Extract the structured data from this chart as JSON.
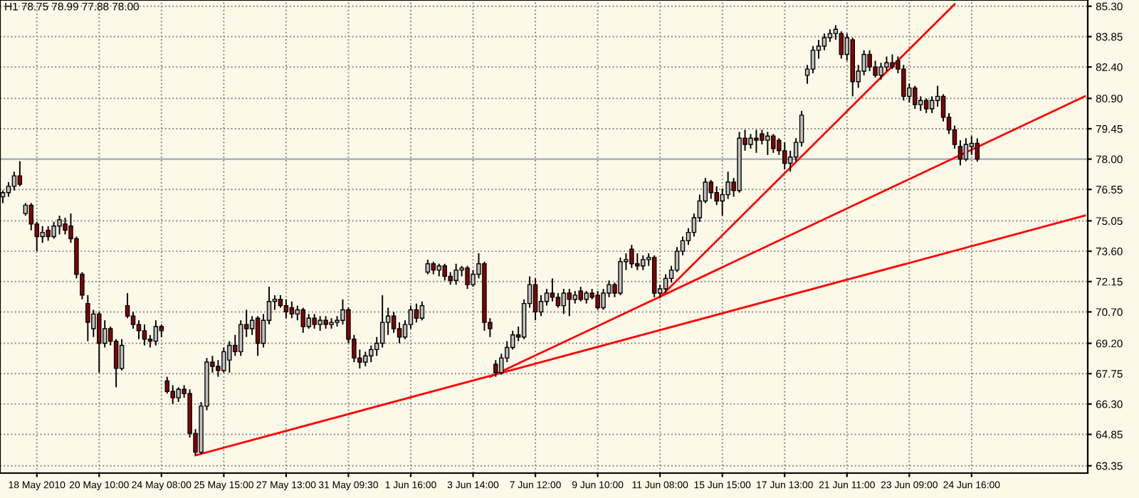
{
  "chart_data": {
    "type": "candlestick",
    "title": "H1 78.75 78.99 77.88 78.00",
    "categories": [
      null,
      null,
      null,
      null,
      null,
      null,
      "18 May 2010",
      null,
      null,
      null,
      null,
      null,
      null,
      null,
      null,
      null,
      null,
      "20 May 10:00",
      null,
      null,
      null,
      null,
      null,
      null,
      null,
      null,
      null,
      null,
      "24 May 08:00",
      null,
      null,
      null,
      null,
      null,
      null,
      null,
      null,
      null,
      null,
      "25 May 15:00",
      null,
      null,
      null,
      null,
      null,
      null,
      null,
      null,
      null,
      null,
      "27 May 13:00",
      null,
      null,
      null,
      null,
      null,
      null,
      null,
      null,
      null,
      null,
      "31 May 09:30",
      null,
      null,
      null,
      null,
      null,
      null,
      null,
      null,
      null,
      null,
      "1 Jun 16:00",
      null,
      null,
      null,
      null,
      null,
      null,
      null,
      null,
      null,
      null,
      "3 Jun 14:00",
      null,
      null,
      null,
      null,
      null,
      null,
      null,
      null,
      null,
      null,
      "7 Jun 12:00",
      null,
      null,
      null,
      null,
      null,
      null,
      null,
      null,
      null,
      null,
      "9 Jun 10:00",
      null,
      null,
      null,
      null,
      null,
      null,
      null,
      null,
      null,
      null,
      "11 Jun 08:00",
      null,
      null,
      null,
      null,
      null,
      null,
      null,
      null,
      null,
      null,
      "15 Jun 15:00",
      null,
      null,
      null,
      null,
      null,
      null,
      null,
      null,
      null,
      null,
      "17 Jun 13:00",
      null,
      null,
      null,
      null,
      null,
      null,
      null,
      null,
      null,
      null,
      "21 Jun 11:00",
      null,
      null,
      null,
      null,
      null,
      null,
      null,
      null,
      null,
      null,
      "23 Jun 09:00",
      null,
      null,
      null,
      null,
      null,
      null,
      null,
      null,
      null,
      null,
      "24 Jun 16:00",
      null,
      null,
      null,
      null,
      null,
      null,
      null,
      null,
      null,
      null,
      null,
      null,
      null,
      null,
      null,
      null,
      null,
      null,
      null,
      null
    ],
    "ohlc": [
      [
        76.2,
        76.5,
        75.9,
        76.4
      ],
      [
        76.4,
        76.9,
        76.2,
        76.7
      ],
      [
        76.7,
        77.4,
        76.5,
        77.2
      ],
      [
        77.2,
        77.9,
        76.7,
        76.8
      ],
      [
        75.4,
        75.9,
        75.3,
        75.8
      ],
      [
        75.8,
        75.9,
        74.6,
        74.9
      ],
      [
        74.9,
        75.0,
        73.6,
        74.3
      ],
      [
        74.3,
        74.8,
        74.0,
        74.5
      ],
      [
        74.6,
        74.8,
        74.1,
        74.3
      ],
      [
        74.3,
        75.0,
        74.2,
        74.8
      ],
      [
        74.8,
        75.3,
        74.4,
        75.1
      ],
      [
        74.9,
        75.2,
        74.4,
        74.6
      ],
      [
        74.8,
        75.4,
        74.0,
        74.2
      ],
      [
        74.2,
        74.3,
        72.3,
        72.5
      ],
      [
        72.5,
        72.6,
        71.3,
        71.5
      ],
      [
        71.1,
        71.5,
        69.3,
        70.2
      ],
      [
        69.9,
        70.8,
        69.5,
        70.6
      ],
      [
        70.6,
        70.7,
        67.8,
        69.2
      ],
      [
        69.2,
        70.3,
        69.0,
        69.9
      ],
      [
        69.9,
        70.0,
        69.1,
        69.3
      ],
      [
        69.3,
        69.4,
        67.1,
        68.0
      ],
      [
        68.0,
        69.4,
        67.9,
        69.1
      ],
      [
        71.0,
        71.6,
        70.4,
        70.5
      ],
      [
        70.5,
        70.7,
        69.9,
        70.1
      ],
      [
        70.1,
        70.3,
        69.4,
        69.8
      ],
      [
        69.8,
        70.1,
        69.1,
        69.4
      ],
      [
        69.4,
        69.6,
        69.0,
        69.3
      ],
      [
        69.3,
        70.3,
        69.1,
        70.0
      ],
      [
        70.0,
        70.1,
        69.5,
        69.8
      ],
      [
        67.4,
        67.6,
        66.8,
        66.9
      ],
      [
        66.9,
        67.2,
        66.3,
        66.6
      ],
      [
        66.6,
        67.1,
        66.4,
        67.0
      ],
      [
        67.0,
        67.2,
        66.6,
        66.8
      ],
      [
        66.8,
        67.0,
        64.7,
        64.9
      ],
      [
        64.9,
        65.1,
        63.85,
        64.0
      ],
      [
        64.0,
        66.4,
        63.9,
        66.2
      ],
      [
        66.2,
        68.5,
        66.0,
        68.3
      ],
      [
        68.3,
        68.6,
        67.8,
        68.1
      ],
      [
        68.1,
        68.4,
        67.6,
        67.9
      ],
      [
        67.9,
        69.0,
        67.8,
        68.8
      ],
      [
        68.4,
        69.3,
        67.8,
        69.1
      ],
      [
        69.1,
        69.6,
        68.6,
        68.8
      ],
      [
        68.8,
        70.3,
        68.6,
        70.1
      ],
      [
        70.1,
        70.8,
        69.5,
        69.9
      ],
      [
        69.9,
        70.5,
        69.6,
        70.3
      ],
      [
        70.4,
        70.5,
        68.6,
        69.2
      ],
      [
        69.2,
        70.6,
        69.0,
        70.3
      ],
      [
        70.3,
        71.9,
        70.1,
        71.2
      ],
      [
        71.2,
        71.5,
        70.8,
        71.3
      ],
      [
        71.3,
        71.5,
        70.9,
        71.0
      ],
      [
        71.0,
        71.3,
        70.4,
        70.7
      ],
      [
        70.9,
        71.2,
        70.4,
        70.6
      ],
      [
        70.6,
        71.0,
        70.3,
        70.8
      ],
      [
        70.8,
        70.9,
        69.7,
        70.0
      ],
      [
        70.0,
        70.6,
        69.9,
        70.4
      ],
      [
        70.4,
        70.6,
        69.9,
        70.1
      ],
      [
        70.1,
        70.5,
        69.8,
        70.3
      ],
      [
        70.3,
        70.5,
        69.9,
        70.1
      ],
      [
        70.1,
        70.4,
        69.9,
        70.2
      ],
      [
        70.2,
        70.5,
        70.0,
        70.3
      ],
      [
        70.3,
        71.3,
        70.1,
        70.8
      ],
      [
        70.8,
        70.9,
        69.2,
        69.4
      ],
      [
        69.4,
        69.6,
        68.3,
        68.5
      ],
      [
        68.5,
        68.9,
        68.0,
        68.3
      ],
      [
        68.3,
        68.8,
        68.1,
        68.6
      ],
      [
        68.6,
        69.1,
        68.3,
        68.9
      ],
      [
        68.9,
        69.5,
        68.6,
        69.2
      ],
      [
        69.2,
        71.5,
        69.0,
        70.2
      ],
      [
        70.2,
        70.9,
        69.6,
        70.5
      ],
      [
        70.5,
        70.7,
        69.7,
        69.9
      ],
      [
        69.9,
        70.2,
        69.2,
        69.5
      ],
      [
        69.5,
        70.3,
        69.4,
        70.1
      ],
      [
        70.1,
        71.0,
        69.9,
        70.8
      ],
      [
        70.8,
        71.1,
        70.2,
        70.4
      ],
      [
        70.4,
        71.2,
        70.3,
        71.0
      ],
      [
        72.6,
        73.2,
        72.5,
        73.0
      ],
      [
        73.0,
        73.1,
        72.5,
        72.7
      ],
      [
        72.7,
        73.0,
        72.4,
        72.9
      ],
      [
        72.9,
        73.0,
        72.2,
        72.4
      ],
      [
        72.4,
        72.6,
        72.0,
        72.2
      ],
      [
        72.2,
        73.0,
        72.0,
        72.7
      ],
      [
        72.7,
        72.9,
        72.4,
        72.8
      ],
      [
        72.8,
        72.9,
        71.8,
        72.0
      ],
      [
        72.0,
        72.7,
        71.9,
        72.5
      ],
      [
        72.5,
        73.5,
        72.3,
        73.0
      ],
      [
        73.0,
        73.1,
        69.8,
        70.2
      ],
      [
        70.2,
        70.4,
        69.5,
        69.9
      ],
      [
        68.2,
        68.4,
        67.6,
        67.8
      ],
      [
        67.8,
        68.7,
        67.7,
        68.5
      ],
      [
        68.5,
        69.3,
        68.3,
        69.0
      ],
      [
        69.0,
        69.8,
        68.9,
        69.6
      ],
      [
        69.6,
        70.0,
        69.3,
        69.5
      ],
      [
        69.5,
        71.3,
        69.4,
        71.1
      ],
      [
        71.1,
        72.4,
        70.9,
        72.0
      ],
      [
        72.0,
        72.3,
        70.3,
        70.7
      ],
      [
        70.7,
        71.5,
        70.5,
        71.2
      ],
      [
        71.2,
        71.8,
        71.0,
        71.6
      ],
      [
        71.6,
        72.3,
        71.2,
        71.4
      ],
      [
        71.4,
        71.6,
        70.9,
        71.0
      ],
      [
        71.0,
        71.8,
        70.6,
        71.6
      ],
      [
        71.6,
        71.8,
        70.5,
        71.3
      ],
      [
        71.3,
        71.7,
        71.1,
        71.5
      ],
      [
        71.7,
        71.9,
        71.2,
        71.3
      ],
      [
        71.3,
        71.7,
        71.1,
        71.6
      ],
      [
        71.6,
        71.8,
        71.3,
        71.4
      ],
      [
        71.5,
        71.7,
        70.8,
        70.9
      ],
      [
        70.9,
        71.8,
        70.8,
        71.6
      ],
      [
        71.6,
        72.2,
        71.4,
        72.0
      ],
      [
        72.0,
        72.1,
        71.4,
        71.6
      ],
      [
        71.6,
        73.3,
        71.5,
        73.1
      ],
      [
        73.1,
        73.5,
        72.7,
        73.2
      ],
      [
        73.7,
        73.9,
        72.8,
        73.0
      ],
      [
        73.0,
        73.5,
        72.7,
        72.9
      ],
      [
        72.9,
        73.4,
        72.7,
        73.2
      ],
      [
        73.2,
        73.5,
        72.9,
        73.3
      ],
      [
        73.3,
        73.4,
        71.4,
        71.6
      ],
      [
        71.6,
        72.0,
        71.4,
        71.8
      ],
      [
        71.8,
        72.5,
        71.6,
        72.3
      ],
      [
        72.3,
        72.9,
        72.1,
        72.7
      ],
      [
        72.7,
        73.8,
        72.6,
        73.6
      ],
      [
        73.6,
        74.3,
        73.4,
        74.1
      ],
      [
        74.1,
        74.7,
        73.9,
        74.5
      ],
      [
        74.5,
        75.4,
        74.3,
        75.2
      ],
      [
        75.2,
        76.3,
        75.0,
        76.0
      ],
      [
        76.0,
        77.1,
        75.9,
        76.9
      ],
      [
        76.9,
        77.0,
        76.1,
        76.4
      ],
      [
        76.4,
        76.7,
        75.8,
        76.0
      ],
      [
        76.0,
        76.6,
        75.3,
        76.3
      ],
      [
        76.3,
        77.4,
        76.1,
        76.9
      ],
      [
        76.9,
        77.1,
        76.2,
        76.5
      ],
      [
        76.5,
        79.3,
        76.4,
        79.0
      ],
      [
        79.0,
        79.4,
        78.4,
        78.7
      ],
      [
        78.7,
        79.2,
        78.5,
        79.0
      ],
      [
        79.0,
        79.4,
        78.3,
        78.9
      ],
      [
        79.2,
        79.4,
        78.7,
        78.9
      ],
      [
        78.9,
        79.3,
        78.2,
        79.1
      ],
      [
        79.1,
        79.2,
        78.3,
        78.5
      ],
      [
        78.9,
        79.0,
        78.2,
        78.4
      ],
      [
        78.4,
        78.8,
        77.5,
        77.8
      ],
      [
        77.8,
        78.4,
        77.4,
        78.1
      ],
      [
        78.1,
        79.0,
        77.9,
        78.8
      ],
      [
        78.8,
        80.3,
        78.6,
        80.1
      ],
      [
        82.0,
        82.5,
        81.6,
        82.3
      ],
      [
        82.3,
        83.4,
        82.1,
        83.2
      ],
      [
        83.2,
        83.7,
        82.8,
        83.4
      ],
      [
        83.4,
        84.0,
        83.2,
        83.8
      ],
      [
        83.8,
        84.2,
        83.6,
        84.0
      ],
      [
        84.0,
        84.4,
        83.7,
        84.2
      ],
      [
        84.0,
        84.1,
        82.8,
        83.0
      ],
      [
        83.0,
        84.0,
        82.7,
        83.8
      ],
      [
        83.7,
        83.8,
        81.0,
        81.7
      ],
      [
        81.7,
        82.5,
        81.4,
        82.2
      ],
      [
        82.2,
        83.2,
        82.0,
        83.0
      ],
      [
        83.0,
        83.2,
        82.2,
        82.4
      ],
      [
        82.4,
        82.7,
        81.9,
        82.0
      ],
      [
        82.0,
        82.6,
        81.8,
        82.4
      ],
      [
        82.4,
        82.9,
        82.2,
        82.6
      ],
      [
        82.6,
        83.0,
        82.3,
        82.4
      ],
      [
        82.7,
        82.9,
        82.1,
        82.3
      ],
      [
        82.3,
        82.5,
        80.8,
        81.0
      ],
      [
        81.0,
        81.6,
        80.7,
        81.4
      ],
      [
        81.4,
        81.5,
        80.4,
        80.6
      ],
      [
        80.6,
        81.0,
        80.3,
        80.8
      ],
      [
        80.8,
        80.9,
        80.2,
        80.4
      ],
      [
        80.4,
        81.0,
        80.2,
        80.8
      ],
      [
        80.8,
        81.5,
        80.5,
        81.0
      ],
      [
        81.0,
        81.1,
        79.8,
        80.0
      ],
      [
        80.0,
        80.2,
        79.2,
        79.4
      ],
      [
        79.4,
        79.6,
        78.5,
        78.7
      ],
      [
        78.6,
        78.9,
        77.7,
        78.0
      ],
      [
        78.0,
        79.0,
        77.9,
        78.7
      ],
      [
        78.6,
        79.1,
        78.2,
        78.75
      ],
      [
        78.75,
        78.99,
        77.88,
        78.0
      ],
      null,
      null,
      null,
      null,
      null,
      null,
      null,
      null,
      null,
      null,
      null,
      null,
      null,
      null,
      null,
      null,
      null,
      null,
      null
    ],
    "colors": [
      "#c0c0c0",
      "#c0c0c0",
      "#c0c0c0",
      "#8b0000",
      "#c0c0c0",
      "#8b0000",
      "#8b0000",
      "#c0c0c0",
      "#8b0000",
      "#c0c0c0",
      "#c0c0c0",
      "#8b0000",
      "#8b0000",
      "#8b0000",
      "#8b0000",
      "#8b0000",
      "#c0c0c0",
      "#8b0000",
      "#c0c0c0",
      "#8b0000",
      "#8b0000",
      "#c0c0c0",
      "#8b0000",
      "#8b0000",
      "#8b0000",
      "#8b0000",
      "#8b0000",
      "#c0c0c0",
      "#8b0000",
      "#8b0000",
      "#8b0000",
      "#c0c0c0",
      "#8b0000",
      "#8b0000",
      "#8b0000",
      "#c0c0c0",
      "#c0c0c0",
      "#8b0000",
      "#8b0000",
      "#c0c0c0",
      "#c0c0c0",
      "#8b0000",
      "#c0c0c0",
      "#8b0000",
      "#c0c0c0",
      "#8b0000",
      "#c0c0c0",
      "#c0c0c0",
      "#c0c0c0",
      "#8b0000",
      "#8b0000",
      "#8b0000",
      "#c0c0c0",
      "#8b0000",
      "#c0c0c0",
      "#8b0000",
      "#c0c0c0",
      "#8b0000",
      "#c0c0c0",
      "#c0c0c0",
      "#c0c0c0",
      "#8b0000",
      "#8b0000",
      "#8b0000",
      "#c0c0c0",
      "#c0c0c0",
      "#c0c0c0",
      "#c0c0c0",
      "#c0c0c0",
      "#8b0000",
      "#8b0000",
      "#c0c0c0",
      "#c0c0c0",
      "#8b0000",
      "#c0c0c0",
      "#c0c0c0",
      "#8b0000",
      "#c0c0c0",
      "#8b0000",
      "#8b0000",
      "#c0c0c0",
      "#c0c0c0",
      "#8b0000",
      "#c0c0c0",
      "#c0c0c0",
      "#8b0000",
      "#8b0000",
      "#8b0000",
      "#c0c0c0",
      "#c0c0c0",
      "#c0c0c0",
      "#8b0000",
      "#c0c0c0",
      "#c0c0c0",
      "#8b0000",
      "#c0c0c0",
      "#c0c0c0",
      "#8b0000",
      "#8b0000",
      "#c0c0c0",
      "#8b0000",
      "#c0c0c0",
      "#8b0000",
      "#c0c0c0",
      "#8b0000",
      "#8b0000",
      "#c0c0c0",
      "#c0c0c0",
      "#8b0000",
      "#c0c0c0",
      "#c0c0c0",
      "#8b0000",
      "#8b0000",
      "#c0c0c0",
      "#c0c0c0",
      "#8b0000",
      "#c0c0c0",
      "#c0c0c0",
      "#c0c0c0",
      "#c0c0c0",
      "#c0c0c0",
      "#c0c0c0",
      "#c0c0c0",
      "#c0c0c0",
      "#c0c0c0",
      "#8b0000",
      "#8b0000",
      "#c0c0c0",
      "#c0c0c0",
      "#8b0000",
      "#c0c0c0",
      "#8b0000",
      "#c0c0c0",
      "#8b0000",
      "#8b0000",
      "#c0c0c0",
      "#8b0000",
      "#8b0000",
      "#8b0000",
      "#c0c0c0",
      "#c0c0c0",
      "#c0c0c0",
      "#c0c0c0",
      "#c0c0c0",
      "#c0c0c0",
      "#c0c0c0",
      "#c0c0c0",
      "#c0c0c0",
      "#8b0000",
      "#c0c0c0",
      "#8b0000",
      "#c0c0c0",
      "#c0c0c0",
      "#8b0000",
      "#8b0000",
      "#c0c0c0",
      "#c0c0c0",
      "#8b0000",
      "#8b0000",
      "#8b0000",
      "#c0c0c0",
      "#8b0000",
      "#c0c0c0",
      "#8b0000",
      "#c0c0c0",
      "#c0c0c0",
      "#8b0000",
      "#8b0000",
      "#8b0000",
      "#8b0000",
      "#c0c0c0",
      "#c0c0c0",
      "#8b0000",
      null,
      null,
      null,
      null,
      null,
      null,
      null,
      null,
      null,
      null,
      null,
      null,
      null,
      null,
      null,
      null,
      null,
      null,
      null
    ],
    "series": [
      {
        "type": "line",
        "color": "#ff0000",
        "values": [
          null,
          null,
          null,
          null,
          null,
          null,
          null,
          null,
          null,
          null,
          null,
          null,
          null,
          null,
          null,
          null,
          null,
          null,
          null,
          null,
          null,
          null,
          null,
          null,
          null,
          null,
          null,
          null,
          null,
          null,
          null,
          null,
          null,
          null,
          63.85,
          null,
          null,
          null,
          null,
          null,
          null,
          null,
          null,
          null,
          null,
          null,
          null,
          null,
          null,
          null,
          null,
          null,
          null,
          null,
          null,
          null,
          null,
          null,
          null,
          null,
          null,
          null,
          null,
          null,
          null,
          null,
          null,
          null,
          null,
          null,
          null,
          null,
          null,
          null,
          null,
          null,
          null,
          null,
          null,
          null,
          null,
          null,
          null,
          null,
          null,
          null,
          null,
          null,
          null,
          null,
          null,
          null,
          null,
          null,
          null,
          null,
          null,
          null,
          null,
          null,
          null,
          null,
          null,
          null,
          null,
          null,
          null,
          null,
          null,
          null,
          null,
          null,
          null,
          null,
          null,
          null,
          null,
          null,
          null,
          null,
          null,
          null,
          null,
          null,
          null,
          null,
          null,
          null,
          null,
          null,
          null,
          null,
          null,
          null,
          null,
          null,
          null,
          null,
          null,
          null,
          null,
          null,
          null,
          null,
          null,
          null,
          null,
          null,
          null,
          null,
          null,
          null,
          null,
          null,
          null,
          null,
          null,
          null,
          null,
          null,
          null,
          null,
          null,
          null,
          null,
          null,
          null,
          null,
          null,
          null,
          null,
          null,
          null,
          null,
          null,
          null,
          null,
          null,
          null,
          null,
          null,
          null,
          null,
          null,
          null,
          null,
          null,
          null,
          null,
          null,
          null,
          75.3
        ]
      },
      {
        "type": "line",
        "color": "#ff0000",
        "values": [
          null,
          null,
          null,
          null,
          null,
          null,
          null,
          null,
          null,
          null,
          null,
          null,
          null,
          null,
          null,
          null,
          null,
          null,
          null,
          null,
          null,
          null,
          null,
          null,
          null,
          null,
          null,
          null,
          null,
          null,
          null,
          null,
          null,
          null,
          null,
          null,
          null,
          null,
          null,
          null,
          null,
          null,
          null,
          null,
          null,
          null,
          null,
          null,
          null,
          null,
          null,
          null,
          null,
          null,
          null,
          null,
          null,
          null,
          null,
          null,
          null,
          null,
          null,
          null,
          null,
          null,
          null,
          null,
          null,
          null,
          null,
          null,
          null,
          null,
          null,
          null,
          null,
          null,
          null,
          null,
          null,
          null,
          null,
          null,
          null,
          null,
          67.6,
          null,
          null,
          null,
          null,
          null,
          null,
          null,
          null,
          null,
          null,
          null,
          null,
          null,
          null,
          null,
          null,
          null,
          null,
          null,
          null,
          null,
          null,
          null,
          null,
          null,
          null,
          null,
          null,
          null,
          null,
          null,
          null,
          null,
          null,
          null,
          null,
          null,
          null,
          null,
          null,
          null,
          null,
          null,
          null,
          null,
          null,
          null,
          null,
          null,
          null,
          null,
          null,
          null,
          null,
          null,
          null,
          null,
          null,
          null,
          null,
          null,
          null,
          null,
          null,
          null,
          null,
          null,
          null,
          null,
          null,
          null,
          null,
          null,
          null,
          null,
          null,
          null,
          null,
          null,
          null,
          null,
          null,
          null,
          null,
          null,
          null,
          null,
          null,
          null,
          null,
          null,
          null,
          null,
          null,
          null,
          null,
          null,
          null,
          null,
          null,
          null,
          null,
          null,
          null,
          81.0
        ]
      },
      {
        "type": "line",
        "color": "#ff0000",
        "values": [
          null,
          null,
          null,
          null,
          null,
          null,
          null,
          null,
          null,
          null,
          null,
          null,
          null,
          null,
          null,
          null,
          null,
          null,
          null,
          null,
          null,
          null,
          null,
          null,
          null,
          null,
          null,
          null,
          null,
          null,
          null,
          null,
          null,
          null,
          null,
          null,
          null,
          null,
          null,
          null,
          null,
          null,
          null,
          null,
          null,
          null,
          null,
          null,
          null,
          null,
          null,
          null,
          null,
          null,
          null,
          null,
          null,
          null,
          null,
          null,
          null,
          null,
          null,
          null,
          null,
          null,
          null,
          null,
          null,
          null,
          null,
          null,
          null,
          null,
          null,
          null,
          null,
          null,
          null,
          null,
          null,
          null,
          null,
          null,
          null,
          null,
          null,
          null,
          null,
          null,
          null,
          null,
          null,
          null,
          null,
          null,
          null,
          null,
          null,
          null,
          null,
          null,
          null,
          null,
          null,
          null,
          null,
          null,
          null,
          null,
          null,
          null,
          null,
          null,
          null,
          null,
          71.4,
          null,
          null,
          null,
          null,
          null,
          null,
          null,
          null,
          null,
          null,
          null,
          null,
          null,
          null,
          null,
          null,
          null,
          null,
          null,
          null,
          null,
          null,
          null,
          null,
          null,
          null,
          null,
          null,
          null,
          null,
          null,
          null,
          null,
          null,
          null,
          null,
          null,
          null,
          null,
          null,
          null,
          null,
          null,
          null,
          null,
          null,
          null,
          null,
          null,
          null,
          null,
          85.4,
          null,
          null,
          null,
          null,
          null,
          null,
          null,
          null,
          null,
          null,
          null,
          null,
          null,
          null,
          null,
          null,
          null,
          null,
          null,
          null,
          null,
          null,
          null
        ]
      }
    ],
    "ref_lines": [
      {
        "axis": "y",
        "value": 78.0,
        "color": "#b0b0c8"
      }
    ],
    "ylim": [
      63.0,
      85.6
    ],
    "yticks": [
      {
        "value": 63.35,
        "label": "63.35"
      },
      {
        "value": 64.85,
        "label": "64.85"
      },
      {
        "value": 66.3,
        "label": "66.30"
      },
      {
        "value": 67.75,
        "label": "67.75"
      },
      {
        "value": 69.2,
        "label": "69.20"
      },
      {
        "value": 70.7,
        "label": "70.70"
      },
      {
        "value": 72.15,
        "label": "72.15"
      },
      {
        "value": 73.6,
        "label": "73.60"
      },
      {
        "value": 75.05,
        "label": "75.05"
      },
      {
        "value": 76.55,
        "label": "76.55"
      },
      {
        "value": 78.0,
        "label": "78.00"
      },
      {
        "value": 79.45,
        "label": "79.45"
      },
      {
        "value": 80.9,
        "label": "80.90"
      },
      {
        "value": 82.4,
        "label": "82.40"
      },
      {
        "value": 83.85,
        "label": "83.85"
      },
      {
        "value": 85.3,
        "label": "85.30"
      }
    ],
    "grid": true,
    "line_style": "solid"
  }
}
